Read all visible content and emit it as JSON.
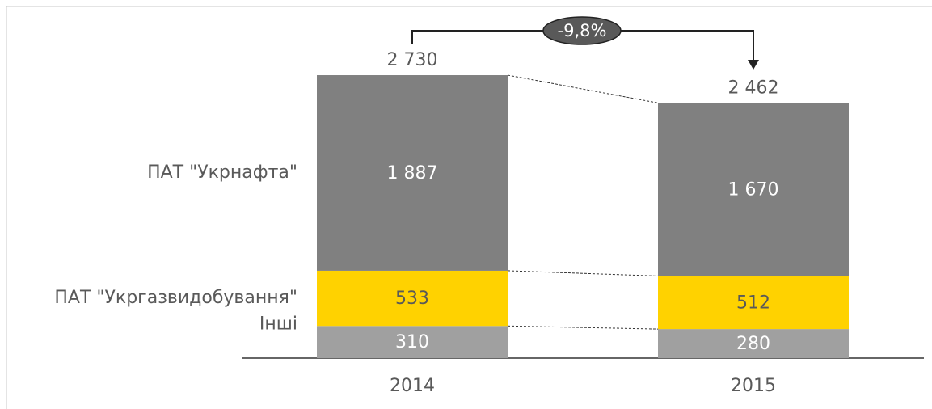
{
  "chart_data": {
    "type": "bar",
    "stacked": true,
    "categories": [
      "2014",
      "2015"
    ],
    "series": [
      {
        "name": "Інші",
        "color": "#a0a0a0",
        "label_color": "#ffffff",
        "values": [
          310,
          280
        ]
      },
      {
        "name": "ПАТ \"Укргазвидобування\"",
        "color": "#ffd200",
        "label_color": "#595959",
        "values": [
          533,
          512
        ]
      },
      {
        "name": "ПАТ \"Укрнафта\"",
        "color": "#808080",
        "label_color": "#ffffff",
        "values": [
          1887,
          1670
        ],
        "value_labels": [
          "1 887",
          "1 670"
        ]
      }
    ],
    "totals": [
      2730,
      2462
    ],
    "total_labels": [
      "2 730",
      "2 462"
    ],
    "annotation": "-9,8%",
    "ylim": [
      0,
      3000
    ]
  }
}
